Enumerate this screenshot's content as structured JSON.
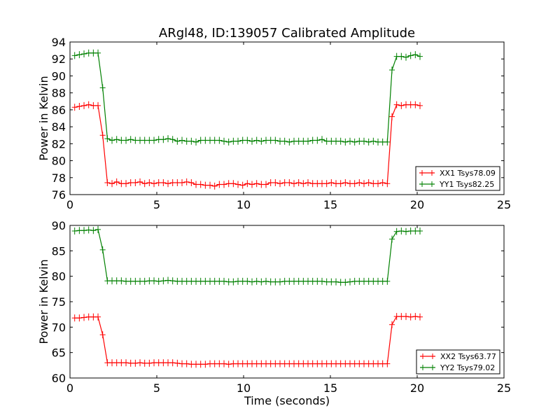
{
  "title": "ARgl48, ID:139057 Calibrated Amplitude",
  "chart_data": [
    {
      "type": "line",
      "title": "ARgl48, ID:139057 Calibrated Amplitude",
      "xlabel": "",
      "ylabel": "Power in Kelvin",
      "xlim": [
        0,
        25
      ],
      "ylim": [
        76,
        94
      ],
      "xticks": [
        0,
        5,
        10,
        15,
        20,
        25
      ],
      "yticks": [
        76,
        78,
        80,
        82,
        84,
        86,
        88,
        90,
        92,
        94
      ],
      "legend_position": "lower-right",
      "x": {
        "start": 0.27,
        "step": 0.2688,
        "count": 75
      },
      "series": [
        {
          "name": "XX1 Tsys78.09",
          "color": "#ff0000",
          "values": [
            86.3,
            86.4,
            86.5,
            86.6,
            86.5,
            86.5,
            83.0,
            77.4,
            77.3,
            77.5,
            77.3,
            77.3,
            77.4,
            77.4,
            77.5,
            77.3,
            77.4,
            77.3,
            77.4,
            77.4,
            77.3,
            77.4,
            77.4,
            77.4,
            77.5,
            77.4,
            77.2,
            77.2,
            77.1,
            77.1,
            77.0,
            77.2,
            77.2,
            77.3,
            77.3,
            77.2,
            77.1,
            77.3,
            77.2,
            77.3,
            77.2,
            77.2,
            77.4,
            77.4,
            77.3,
            77.4,
            77.4,
            77.3,
            77.4,
            77.3,
            77.4,
            77.3,
            77.3,
            77.3,
            77.3,
            77.4,
            77.3,
            77.3,
            77.4,
            77.3,
            77.3,
            77.4,
            77.3,
            77.4,
            77.3,
            77.3,
            77.4,
            77.3,
            85.2,
            86.6,
            86.5,
            86.6,
            86.6,
            86.6,
            86.5
          ]
        },
        {
          "name": "YY1 Tsys82.25",
          "color": "#008000",
          "values": [
            92.4,
            92.5,
            92.6,
            92.7,
            92.7,
            92.7,
            88.6,
            82.6,
            82.4,
            82.5,
            82.4,
            82.4,
            82.5,
            82.4,
            82.4,
            82.4,
            82.4,
            82.4,
            82.5,
            82.5,
            82.6,
            82.5,
            82.3,
            82.4,
            82.3,
            82.3,
            82.2,
            82.4,
            82.4,
            82.4,
            82.4,
            82.4,
            82.3,
            82.2,
            82.3,
            82.3,
            82.4,
            82.4,
            82.3,
            82.4,
            82.3,
            82.4,
            82.4,
            82.4,
            82.3,
            82.3,
            82.2,
            82.3,
            82.3,
            82.3,
            82.3,
            82.4,
            82.4,
            82.5,
            82.3,
            82.3,
            82.3,
            82.3,
            82.2,
            82.3,
            82.2,
            82.3,
            82.3,
            82.2,
            82.3,
            82.2,
            82.2,
            82.2,
            90.7,
            92.3,
            92.3,
            92.2,
            92.4,
            92.5,
            92.3
          ]
        }
      ]
    },
    {
      "type": "line",
      "title": "",
      "xlabel": "Time (seconds)",
      "ylabel": "Power in Kelvin",
      "xlim": [
        0,
        25
      ],
      "ylim": [
        60,
        90
      ],
      "xticks": [
        0,
        5,
        10,
        15,
        20,
        25
      ],
      "yticks": [
        60,
        65,
        70,
        75,
        80,
        85,
        90
      ],
      "legend_position": "lower-right",
      "x": {
        "start": 0.27,
        "step": 0.2688,
        "count": 75
      },
      "series": [
        {
          "name": "XX2 Tsys63.77",
          "color": "#ff0000",
          "values": [
            71.8,
            71.8,
            71.9,
            72.0,
            72.0,
            72.0,
            68.5,
            63.0,
            63.0,
            63.0,
            63.0,
            63.0,
            62.9,
            62.9,
            63.0,
            62.9,
            62.9,
            63.0,
            63.0,
            63.0,
            63.0,
            63.0,
            62.9,
            62.8,
            62.8,
            62.7,
            62.7,
            62.7,
            62.7,
            62.8,
            62.8,
            62.8,
            62.8,
            62.7,
            62.8,
            62.8,
            62.8,
            62.8,
            62.8,
            62.8,
            62.8,
            62.8,
            62.8,
            62.8,
            62.8,
            62.8,
            62.8,
            62.8,
            62.8,
            62.8,
            62.8,
            62.8,
            62.8,
            62.8,
            62.8,
            62.8,
            62.8,
            62.8,
            62.8,
            62.8,
            62.8,
            62.8,
            62.8,
            62.8,
            62.8,
            62.8,
            62.8,
            62.8,
            70.5,
            72.1,
            72.1,
            72.1,
            72.0,
            72.1,
            72.0
          ]
        },
        {
          "name": "YY2 Tsys79.02",
          "color": "#008000",
          "values": [
            88.9,
            89.0,
            89.0,
            89.1,
            89.0,
            89.2,
            85.2,
            79.1,
            79.1,
            79.1,
            79.1,
            79.0,
            79.0,
            79.0,
            79.0,
            79.0,
            79.1,
            79.1,
            79.0,
            79.1,
            79.2,
            79.1,
            79.0,
            79.0,
            79.0,
            79.0,
            79.0,
            79.0,
            79.0,
            79.0,
            79.0,
            79.0,
            79.0,
            78.9,
            78.9,
            79.0,
            79.0,
            79.0,
            78.9,
            79.0,
            78.9,
            79.0,
            78.9,
            78.9,
            78.9,
            79.0,
            79.0,
            79.0,
            79.0,
            79.0,
            79.0,
            79.0,
            79.0,
            79.0,
            78.9,
            78.9,
            78.9,
            78.8,
            78.8,
            78.9,
            79.0,
            79.0,
            79.0,
            79.0,
            79.0,
            79.0,
            79.0,
            79.0,
            87.3,
            88.8,
            88.9,
            88.8,
            88.9,
            88.9,
            88.9
          ]
        }
      ]
    }
  ]
}
